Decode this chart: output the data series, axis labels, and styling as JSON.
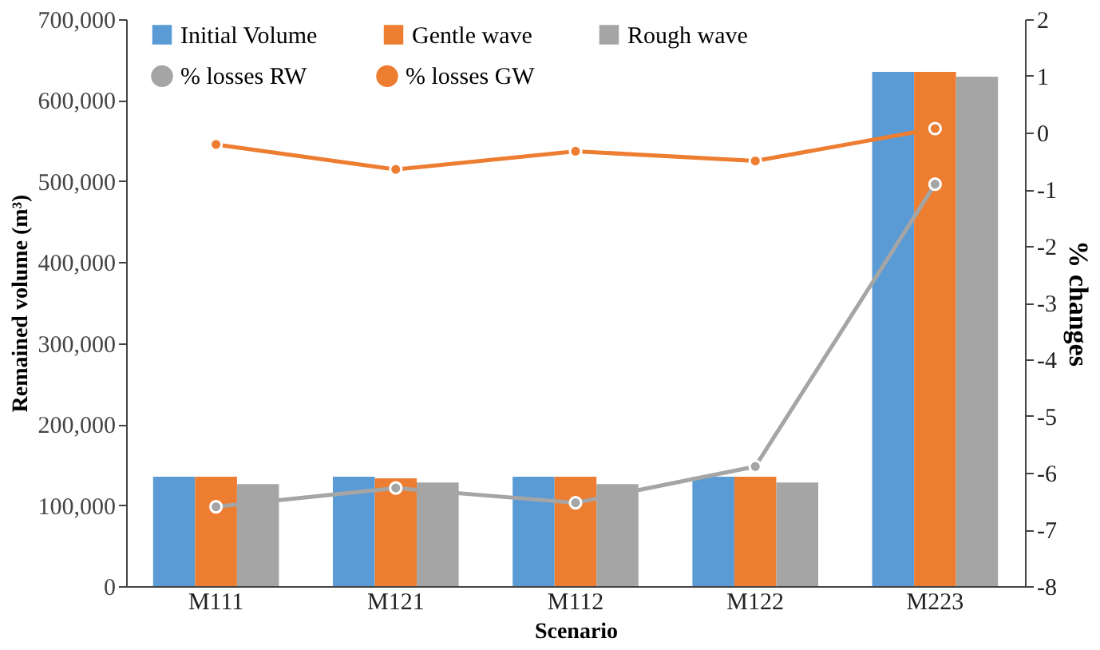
{
  "chart_data": {
    "type": "bar",
    "xlabel": "Scenario",
    "ylabel": "Remained volume (m³)",
    "y2label": "% changes",
    "categories": [
      "M111",
      "M121",
      "M112",
      "M122",
      "M223"
    ],
    "series": [
      {
        "name": "Initial Volume",
        "color": "#5b9bd5",
        "values": [
          135000,
          135000,
          135000,
          135000,
          635000
        ]
      },
      {
        "name": "Gentle wave",
        "color": "#ed7d31",
        "values": [
          135000,
          133000,
          135000,
          135000,
          635000
        ]
      },
      {
        "name": "Rough wave",
        "color": "#a5a5a5",
        "values": [
          126000,
          128000,
          126000,
          128000,
          629000
        ]
      },
      {
        "name": "% losses RW",
        "type": "line",
        "axis": "y2",
        "color": "#a5a5a5",
        "values": [
          -6.6,
          -6.27,
          -6.53,
          -5.89,
          -0.91
        ]
      },
      {
        "name": "% losses GW",
        "type": "line",
        "axis": "y2",
        "color": "#ed7d31",
        "values": [
          -0.21,
          -0.65,
          -0.33,
          -0.5,
          0.07
        ]
      }
    ],
    "ylim": [
      0,
      700000
    ],
    "yticks": [
      0,
      {
        "value": 100000,
        "label": "100,000"
      },
      {
        "value": 200000,
        "label": "200,000"
      },
      {
        "value": 300000,
        "label": "300,000"
      },
      {
        "value": 400000,
        "label": "400,000"
      },
      {
        "value": 500000,
        "label": "500,000"
      },
      {
        "value": 600000,
        "label": "600,000"
      },
      {
        "value": 700000,
        "label": "700,000"
      }
    ],
    "y2lim": [
      -8,
      2
    ],
    "y2ticks": [
      -8,
      -7,
      -6,
      -5,
      -4,
      -3,
      -2,
      -1,
      0,
      1,
      2
    ],
    "legend": "top",
    "marker": "circle",
    "grid": false
  }
}
